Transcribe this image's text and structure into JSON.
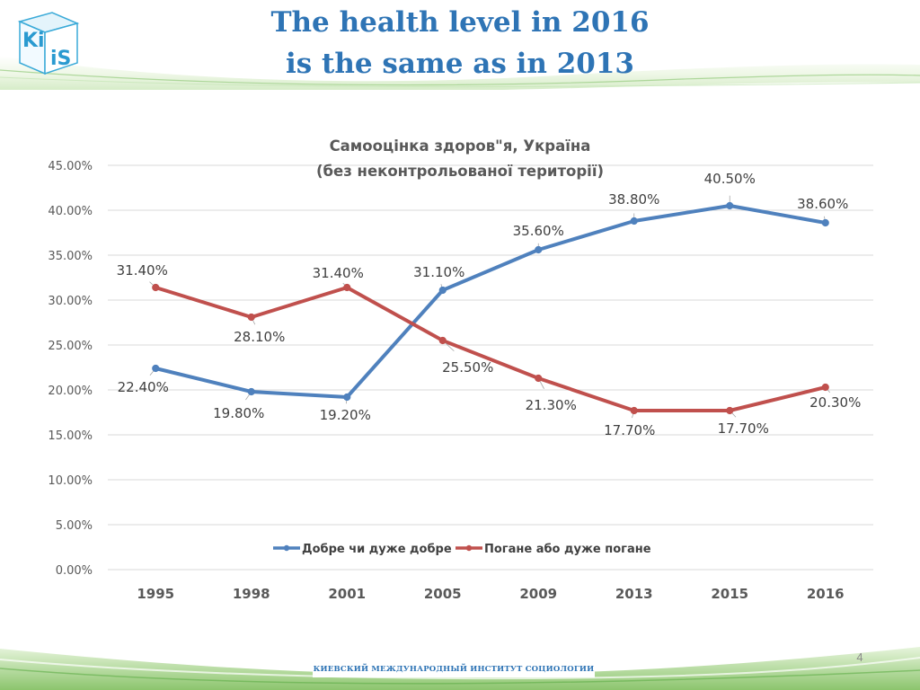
{
  "slide": {
    "title_line1": "The health level in 2016",
    "title_line2": "is the same as in 2013",
    "logo_text_top": "Ki",
    "logo_text_bottom": "iS",
    "footer_text": "КИЕВСКИЙ МЕЖДУНАРОДНЫЙ ИНСТИТУТ СОЦИОЛОГИИ",
    "page_number": "4"
  },
  "chart_data": {
    "type": "line",
    "title": "Самооцінка здоров\"я, Україна",
    "subtitle": "(без неконтрольованої території)",
    "categories": [
      "1995",
      "1998",
      "2001",
      "2005",
      "2009",
      "2013",
      "2015",
      "2016"
    ],
    "series": [
      {
        "name": "Добре чи дуже добре",
        "color": "#4f81bd",
        "values": [
          22.4,
          19.8,
          19.2,
          31.1,
          35.6,
          38.8,
          40.5,
          38.6
        ],
        "labels": [
          "22.40%",
          "19.80%",
          "19.20%",
          "31.10%",
          "35.60%",
          "38.80%",
          "40.50%",
          "38.60%"
        ]
      },
      {
        "name": "Погане або дуже погане",
        "color": "#c0504d",
        "values": [
          31.4,
          28.1,
          31.4,
          25.5,
          21.3,
          17.7,
          17.7,
          20.3
        ],
        "labels": [
          "31.40%",
          "28.10%",
          "31.40%",
          "25.50%",
          "21.30%",
          "17.70%",
          "17.70%",
          "20.30%"
        ]
      }
    ],
    "yticks": [
      "0.00%",
      "5.00%",
      "10.00%",
      "15.00%",
      "20.00%",
      "25.00%",
      "30.00%",
      "35.00%",
      "40.00%",
      "45.00%"
    ],
    "ylim": [
      0,
      45
    ],
    "grid": true,
    "legend_position": "bottom"
  }
}
